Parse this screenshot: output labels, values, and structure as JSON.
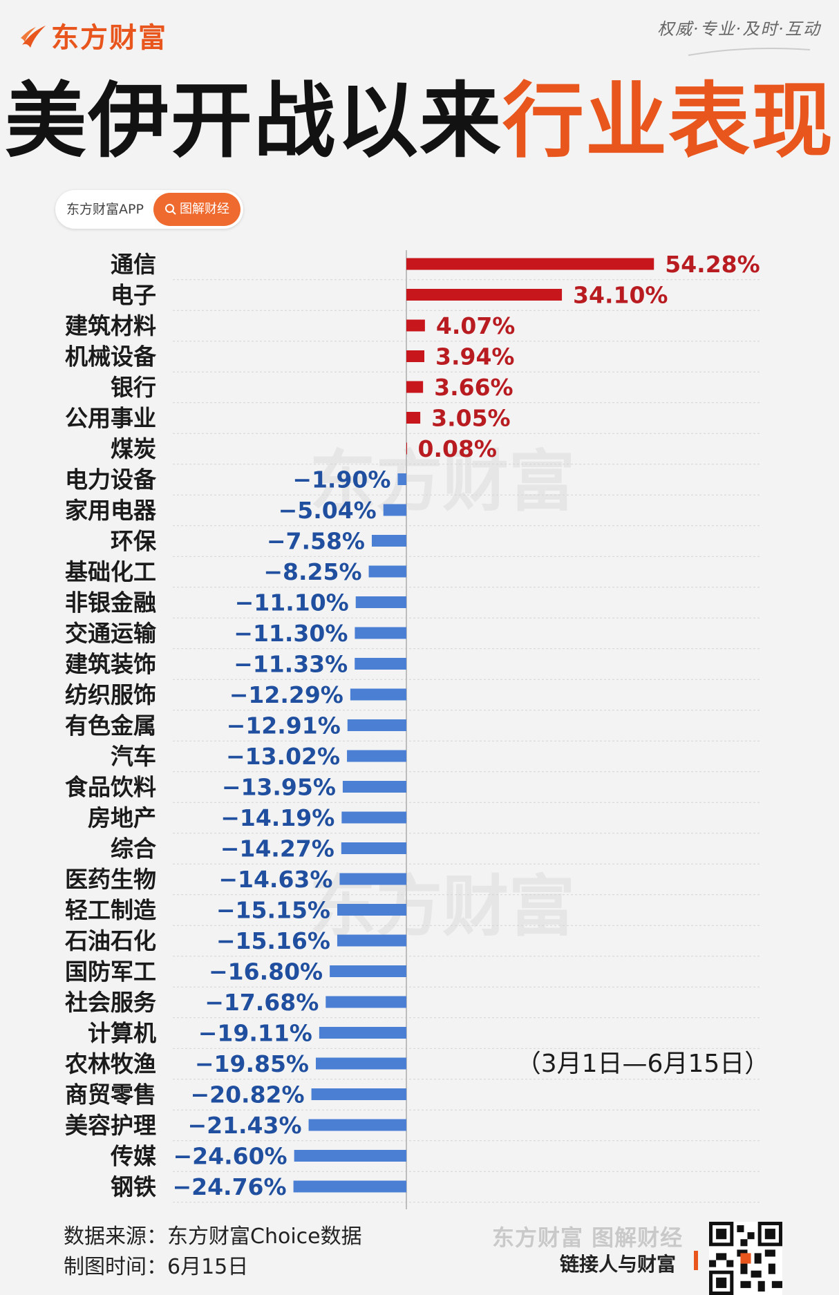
{
  "brand": {
    "name": "东方财富",
    "motto": "权威·专业·及时·互动",
    "accent": "#e8561e"
  },
  "title": {
    "black": "美伊开战以来",
    "orange": "行业表现"
  },
  "search": {
    "app_label": "东方财富APP",
    "button_label": "图解财经",
    "icon": "search-icon"
  },
  "watermark": "东方财富",
  "chart_data": {
    "type": "bar",
    "orientation": "horizontal",
    "annotation": "（3月1日—6月15日）",
    "categories": [
      "通信",
      "电子",
      "建筑材料",
      "机械设备",
      "银行",
      "公用事业",
      "煤炭",
      "电力设备",
      "家用电器",
      "环保",
      "基础化工",
      "非银金融",
      "交通运输",
      "建筑装饰",
      "纺织服饰",
      "有色金属",
      "汽车",
      "食品饮料",
      "房地产",
      "综合",
      "医药生物",
      "轻工制造",
      "石油石化",
      "国防军工",
      "社会服务",
      "计算机",
      "农林牧渔",
      "商贸零售",
      "美容护理",
      "传媒",
      "钢铁"
    ],
    "values": [
      54.28,
      34.1,
      4.07,
      3.94,
      3.66,
      3.05,
      0.08,
      -1.9,
      -5.04,
      -7.58,
      -8.25,
      -11.1,
      -11.3,
      -11.33,
      -12.29,
      -12.91,
      -13.02,
      -13.95,
      -14.19,
      -14.27,
      -14.63,
      -15.15,
      -15.16,
      -16.8,
      -17.68,
      -19.11,
      -19.85,
      -20.82,
      -21.43,
      -24.6,
      -24.76
    ],
    "labels": [
      "54.28%",
      "34.10%",
      "4.07%",
      "3.94%",
      "3.66%",
      "3.05%",
      "0.08%",
      "−1.90%",
      "−5.04%",
      "−7.58%",
      "−8.25%",
      "−11.10%",
      "−11.30%",
      "−11.33%",
      "−12.29%",
      "−12.91%",
      "−13.02%",
      "−13.95%",
      "−14.19%",
      "−14.27%",
      "−14.63%",
      "−15.15%",
      "−15.16%",
      "−16.80%",
      "−17.68%",
      "−19.11%",
      "−19.85%",
      "−20.82%",
      "−21.43%",
      "−24.60%",
      "−24.76%"
    ],
    "positive_color": "#c8161d",
    "negative_color": "#4a7fd4",
    "positive_label_color": "#b81b20",
    "negative_label_color": "#1f4f9e",
    "grid": true
  },
  "footer": {
    "source": "数据来源：东方财富Choice数据",
    "time": "制图时间：6月15日",
    "brand_line": "东方财富 图解财经",
    "slogan": "链接人与财富"
  }
}
